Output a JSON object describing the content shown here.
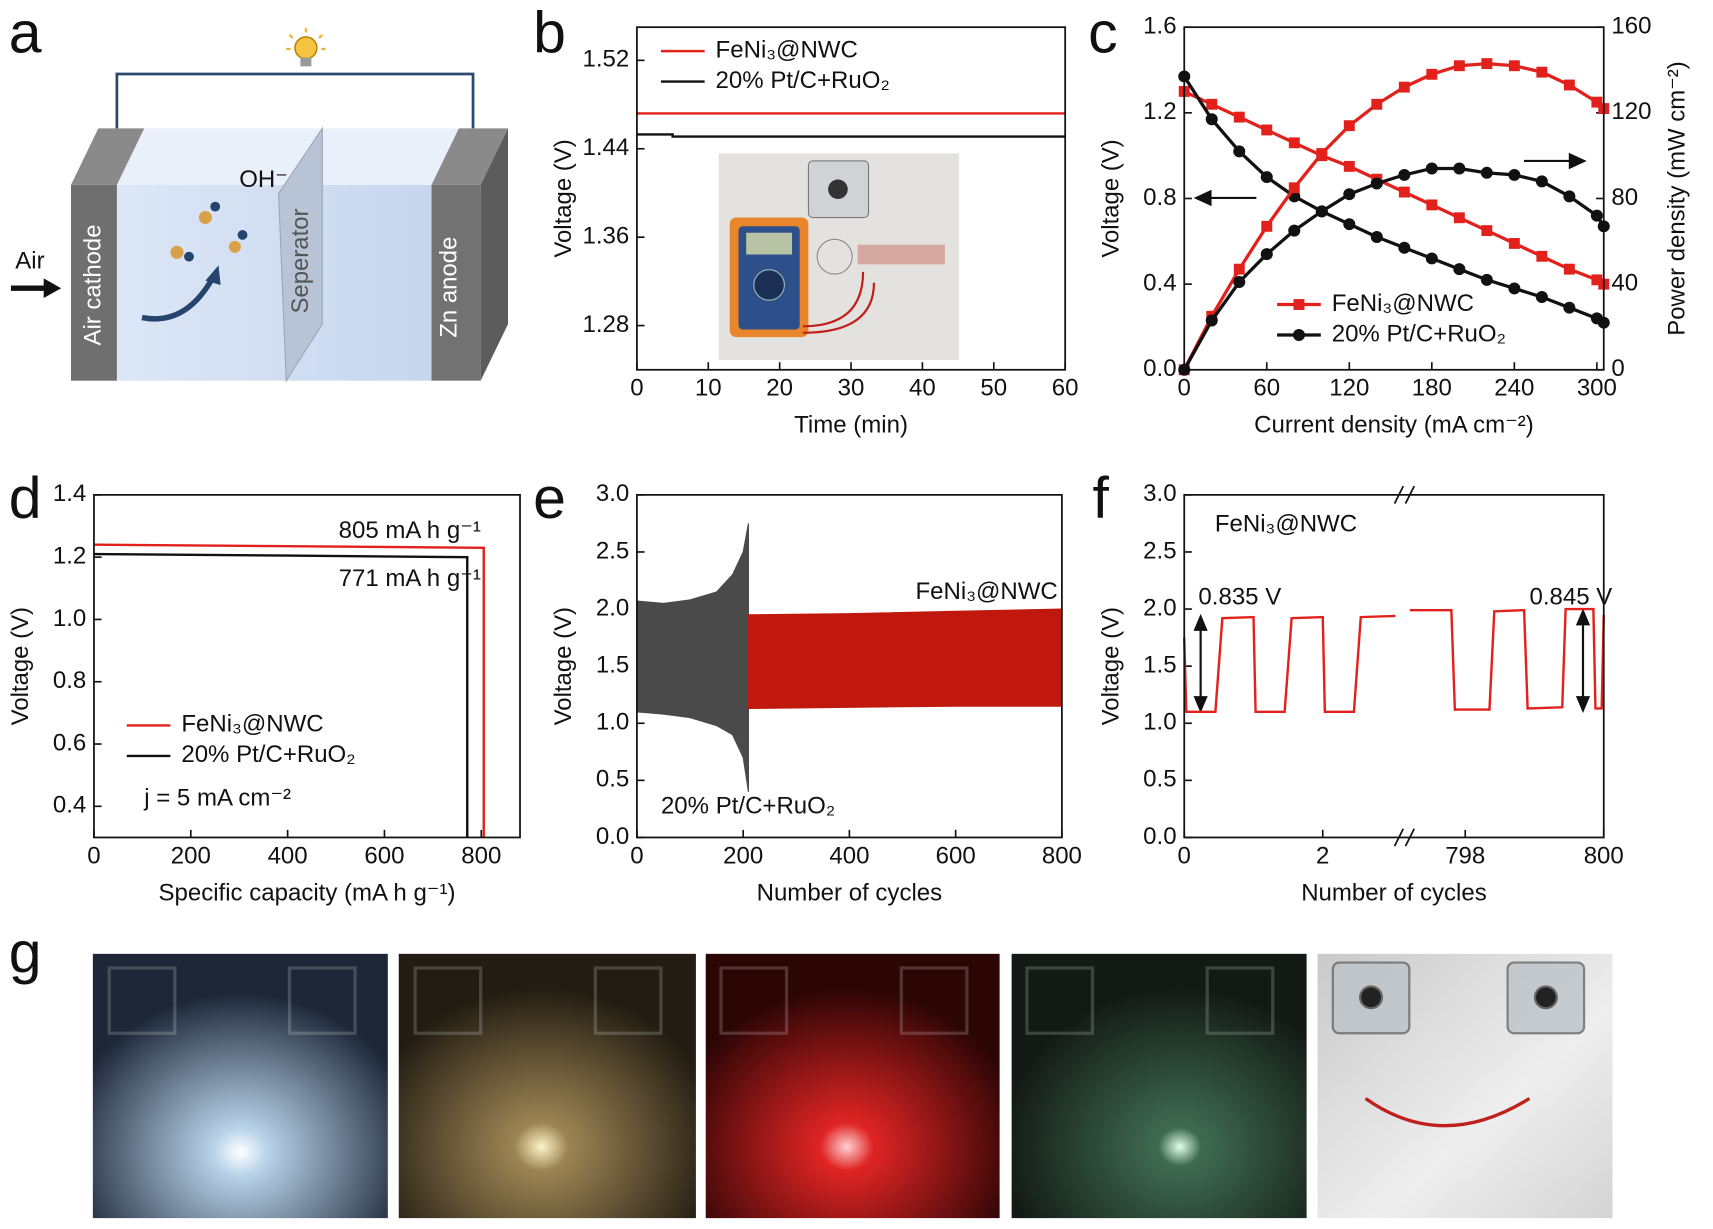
{
  "panel_labels": [
    "a",
    "b",
    "c",
    "d",
    "e",
    "f",
    "g"
  ],
  "schematic": {
    "air": "Air",
    "cathode": "Air cathode",
    "separator": "Seperator",
    "anode": "Zn anode",
    "ion": "OH⁻"
  },
  "chart_data": [
    {
      "type": "line",
      "xlabel": "Time (min)",
      "ylabel": "Voltage (V)",
      "xlim": [
        0,
        60
      ],
      "xticks": [
        0,
        10,
        20,
        30,
        40,
        50,
        60
      ],
      "ylim": [
        1.24,
        1.55
      ],
      "yticks": [
        1.28,
        1.36,
        1.44,
        1.52
      ],
      "legend": "upper left",
      "series": [
        {
          "name": "FeNi₃@NWC",
          "color": "#e3211c",
          "x": [
            0,
            60
          ],
          "values": [
            1.472,
            1.472
          ]
        },
        {
          "name": "20% Pt/C+RuO₂",
          "color": "#111111",
          "x": [
            0,
            5,
            5,
            60
          ],
          "values": [
            1.453,
            1.453,
            1.451,
            1.451
          ]
        }
      ]
    },
    {
      "type": "line",
      "xlabel": "Current density (mA cm⁻²)",
      "ylabel": "Voltage (V)",
      "y2label": "Power density (mW cm⁻²)",
      "xlim": [
        0,
        305
      ],
      "xticks": [
        0,
        60,
        120,
        180,
        240,
        300
      ],
      "ylim": [
        0,
        1.6
      ],
      "yticks": [
        {
          "value": 0,
          "label": "0.0"
        },
        0.4,
        0.8,
        1.2,
        1.6
      ],
      "y2lim": [
        0,
        160
      ],
      "y2ticks": [
        0,
        40,
        80,
        120,
        160
      ],
      "legend": "lower center",
      "x": [
        0,
        20,
        40,
        60,
        80,
        100,
        120,
        140,
        160,
        180,
        200,
        220,
        240,
        260,
        280,
        300,
        305
      ],
      "series": [
        {
          "name": "FeNi₃@NWC",
          "color": "#e3211c",
          "marker": "square",
          "values": [
            1.3,
            1.24,
            1.18,
            1.12,
            1.06,
            1.0,
            0.95,
            0.89,
            0.83,
            0.77,
            0.71,
            0.65,
            0.59,
            0.53,
            0.47,
            0.42,
            0.4
          ]
        },
        {
          "name": "20% Pt/C+RuO₂",
          "color": "#111111",
          "marker": "circle",
          "values": [
            1.37,
            1.17,
            1.02,
            0.9,
            0.81,
            0.74,
            0.68,
            0.62,
            0.57,
            0.52,
            0.47,
            0.42,
            0.38,
            0.34,
            0.29,
            0.24,
            0.22
          ]
        },
        {
          "color": "#e3211c",
          "marker": "square",
          "axis": "y2",
          "values": [
            0,
            25,
            47,
            67,
            85,
            101,
            114,
            124,
            132,
            138,
            142,
            143,
            142,
            139,
            133,
            125,
            122
          ]
        },
        {
          "color": "#111111",
          "marker": "circle",
          "axis": "y2",
          "values": [
            0,
            23,
            41,
            54,
            65,
            74,
            82,
            87,
            91,
            94,
            94,
            92,
            91,
            88,
            81,
            72,
            67
          ]
        }
      ]
    },
    {
      "type": "line",
      "xlabel": "Specific capacity (mA h g⁻¹)",
      "ylabel": "Voltage (V)",
      "xlim": [
        0,
        880
      ],
      "xticks": [
        0,
        200,
        400,
        600,
        800
      ],
      "ylim": [
        0.3,
        1.4
      ],
      "yticks": [
        0.4,
        0.6,
        0.8,
        {
          "value": 1,
          "label": "1.0"
        },
        1.2,
        1.4
      ],
      "legend": "lower left",
      "annotations": [
        "805 mA h g⁻¹",
        "771 mA h g⁻¹",
        "j = 5 mA cm⁻²"
      ],
      "series": [
        {
          "name": "FeNi₃@NWC",
          "color": "#e3211c",
          "x": [
            0,
            400,
            805,
            805
          ],
          "values": [
            1.24,
            1.235,
            1.23,
            0.3
          ]
        },
        {
          "name": "20% Pt/C+RuO₂",
          "color": "#111111",
          "x": [
            0,
            400,
            771,
            771
          ],
          "values": [
            1.21,
            1.205,
            1.2,
            0.3
          ]
        }
      ]
    },
    {
      "type": "area",
      "xlabel": "Number of cycles",
      "ylabel": "Voltage (V)",
      "xlim": [
        0,
        800
      ],
      "xticks": [
        0,
        200,
        400,
        600,
        800
      ],
      "ylim": [
        0,
        3
      ],
      "yticks": [
        {
          "value": 0,
          "label": "0.0"
        },
        0.5,
        {
          "value": 1,
          "label": "1.0"
        },
        1.5,
        {
          "value": 2,
          "label": "2.0"
        },
        2.5,
        {
          "value": 3,
          "label": "3.0"
        }
      ],
      "legend": "inline",
      "series": [
        {
          "name": "20% Pt/C+RuO₂",
          "color": "#4a4a4a",
          "x": [
            0,
            50,
            100,
            150,
            180,
            200,
            210
          ],
          "upper": [
            2.07,
            2.05,
            2.08,
            2.15,
            2.3,
            2.5,
            2.75
          ],
          "lower": [
            1.1,
            1.08,
            1.05,
            0.98,
            0.9,
            0.7,
            0.4
          ]
        },
        {
          "name": "FeNi₃@NWC",
          "color": "#c0180c",
          "x": [
            210,
            400,
            600,
            800
          ],
          "upper": [
            1.95,
            1.96,
            1.98,
            2.0
          ],
          "lower": [
            1.13,
            1.14,
            1.15,
            1.15
          ]
        }
      ]
    },
    {
      "type": "line",
      "xlabel": "Number of cycles",
      "ylabel": "Voltage (V)",
      "x_segments": [
        {
          "xlim": [
            0,
            3.1
          ],
          "xticks": [
            0,
            2
          ]
        },
        {
          "xlim": [
            797.2,
            800
          ],
          "xticks": [
            798,
            800
          ]
        }
      ],
      "ylim": [
        0,
        3
      ],
      "yticks": [
        {
          "value": 0,
          "label": "0.0"
        },
        0.5,
        {
          "value": 1,
          "label": "1.0"
        },
        1.5,
        {
          "value": 2,
          "label": "2.0"
        },
        2.5,
        {
          "value": 3,
          "label": "3.0"
        }
      ],
      "annotations": [
        "FeNi₃@NWC",
        "0.835 V",
        "0.845 V"
      ],
      "series": [
        {
          "color": "#e3211c",
          "x": [
            0,
            0.03,
            0.45,
            0.55,
            1.0,
            1.03,
            1.45,
            1.55,
            2.0,
            2.03,
            2.45,
            2.55,
            3.05,
            null,
            797.2,
            797.8,
            797.85,
            798.35,
            798.42,
            798.85,
            798.9,
            799.4,
            799.45,
            799.85,
            799.88,
            799.97,
            800
          ],
          "values": [
            1.75,
            1.1,
            1.1,
            1.92,
            1.93,
            1.1,
            1.1,
            1.92,
            1.93,
            1.1,
            1.1,
            1.93,
            1.94,
            null,
            1.99,
            1.99,
            1.12,
            1.12,
            1.98,
            1.99,
            1.13,
            1.14,
            2.0,
            2.0,
            1.13,
            1.13,
            1.95
          ]
        }
      ]
    }
  ]
}
